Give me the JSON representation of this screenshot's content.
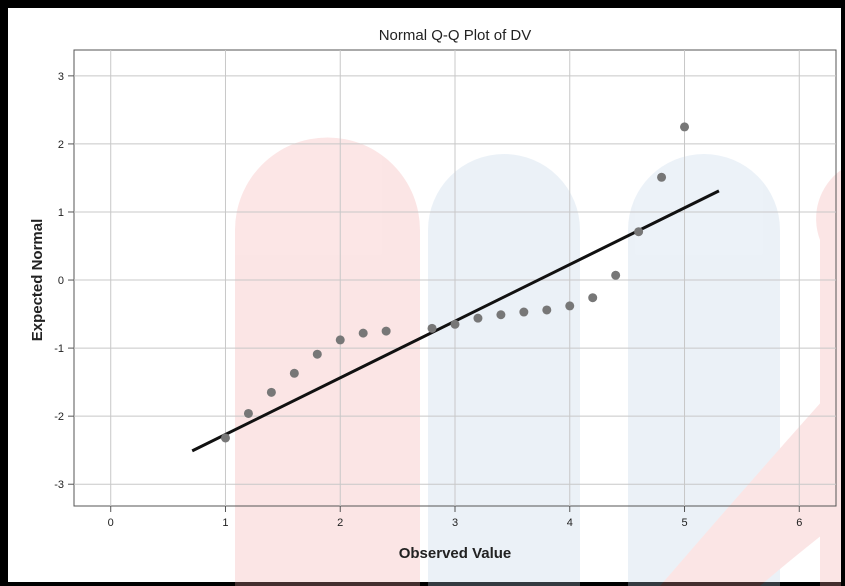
{
  "chart_data": {
    "type": "scatter",
    "title": "Normal Q-Q Plot of DV",
    "x_label": "Observed Value",
    "y_label": "Expected Normal",
    "x": [
      1.0,
      1.2,
      1.4,
      1.6,
      1.8,
      2.0,
      2.2,
      2.4,
      2.8,
      3.0,
      3.2,
      3.4,
      3.6,
      3.8,
      4.0,
      4.2,
      4.4,
      4.6,
      4.8,
      5.0
    ],
    "values": [
      -2.32,
      -1.96,
      -1.65,
      -1.37,
      -1.09,
      -0.88,
      -0.78,
      -0.75,
      -0.71,
      -0.65,
      -0.56,
      -0.51,
      -0.47,
      -0.44,
      -0.38,
      -0.26,
      0.07,
      0.71,
      1.51,
      2.25
    ],
    "color": "#777777",
    "reference_line": {
      "x": [
        0.71,
        5.3
      ],
      "y": [
        -2.51,
        1.31
      ],
      "color": "#111111"
    },
    "xlim": [
      -0.32,
      6.32
    ],
    "ylim": [
      -3.32,
      3.38
    ],
    "xticks": [
      0,
      1,
      2,
      3,
      4,
      5,
      6
    ],
    "yticks": [
      -3,
      -2,
      -1,
      0,
      1,
      2,
      3
    ],
    "grid": true
  }
}
